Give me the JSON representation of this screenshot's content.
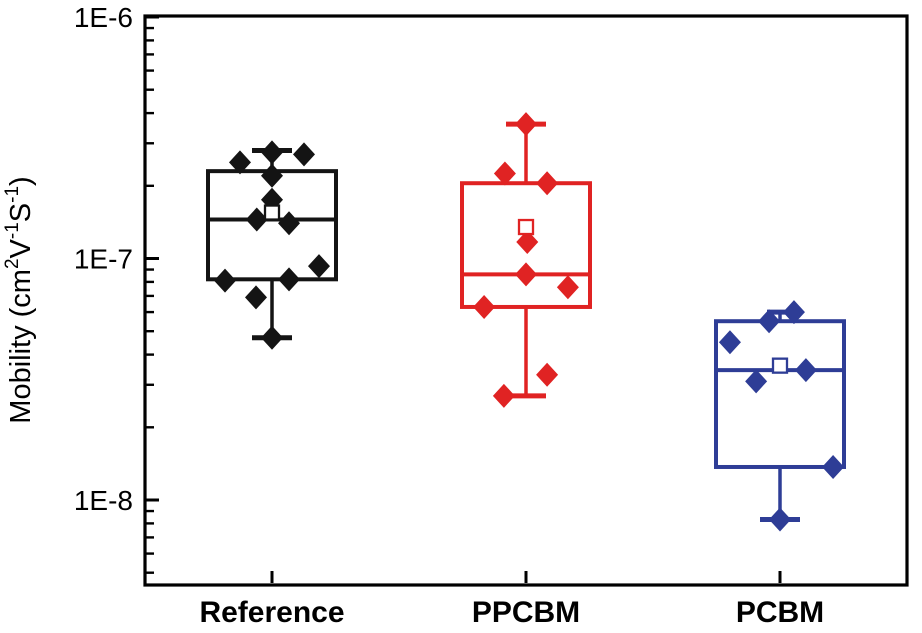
{
  "figure": {
    "background": "#ffffff",
    "description": "Box plot of charge-carrier mobility for three device types"
  },
  "chart_data": {
    "type": "box",
    "title": "",
    "xlabel": "",
    "ylabel_text": "Mobility (cm2V-1S-1)",
    "ylabel_segments": [
      {
        "t": "Mobility (cm"
      },
      {
        "t": "2",
        "sup": true
      },
      {
        "t": "V"
      },
      {
        "t": "-1",
        "sup": true
      },
      {
        "t": "S"
      },
      {
        "t": "-1",
        "sup": true
      },
      {
        "t": ")"
      }
    ],
    "yscale": "log",
    "ylim": [
      4.4e-09,
      1e-06
    ],
    "yticks": [
      {
        "label": "1E-6",
        "value": 1e-06
      },
      {
        "label": "1E-7",
        "value": 1e-07
      },
      {
        "label": "1E-8",
        "value": 1e-08
      }
    ],
    "minor_ticks": true,
    "grid": false,
    "legend": "none",
    "categories": [
      "Reference",
      "PPCBM",
      "PCBM"
    ],
    "axis_color": "#000000",
    "series": [
      {
        "name": "Reference",
        "color": "#141414",
        "box": {
          "whisker_high": 2.8e-07,
          "q3": 2.3e-07,
          "mean": 1.55e-07,
          "median": 1.45e-07,
          "q1": 8.2e-08,
          "whisker_low": 4.7e-08
        },
        "points": [
          [
            -0.126,
            2.5e-07
          ],
          [
            0.0,
            2.75e-07
          ],
          [
            0.126,
            2.7e-07
          ],
          [
            0.0,
            2.2e-07
          ],
          [
            0.0,
            1.75e-07
          ],
          [
            -0.06,
            1.45e-07
          ],
          [
            0.067,
            1.4e-07
          ],
          [
            0.185,
            9.3e-08
          ],
          [
            -0.185,
            8.1e-08
          ],
          [
            0.067,
            8.2e-08
          ],
          [
            -0.063,
            6.9e-08
          ],
          [
            0.0,
            4.7e-08
          ]
        ]
      },
      {
        "name": "PPCBM",
        "color": "#e02323",
        "box": {
          "whisker_high": 3.6e-07,
          "q3": 2.05e-07,
          "mean": 1.35e-07,
          "median": 8.6e-08,
          "q1": 6.3e-08,
          "whisker_low": 2.7e-08
        },
        "points": [
          [
            0.0,
            3.6e-07
          ],
          [
            -0.083,
            2.25e-07
          ],
          [
            0.083,
            2.05e-07
          ],
          [
            0.005,
            1.17e-07
          ],
          [
            0.0,
            8.6e-08
          ],
          [
            0.165,
            7.6e-08
          ],
          [
            -0.165,
            6.3e-08
          ],
          [
            0.083,
            3.3e-08
          ],
          [
            -0.087,
            2.7e-08
          ]
        ]
      },
      {
        "name": "PCBM",
        "color": "#2e3d96",
        "narrow_top_cap": true,
        "box": {
          "whisker_high": 6e-08,
          "q3": 5.5e-08,
          "mean": 3.6e-08,
          "median": 3.45e-08,
          "q1": 1.37e-08,
          "whisker_low": 8.3e-09
        },
        "points": [
          [
            -0.197,
            4.5e-08
          ],
          [
            -0.043,
            5.5e-08
          ],
          [
            0.055,
            6e-08
          ],
          [
            -0.094,
            3.1e-08
          ],
          [
            0.102,
            3.45e-08
          ],
          [
            0.209,
            1.37e-08
          ],
          [
            0.0,
            8.3e-09
          ]
        ]
      }
    ]
  }
}
